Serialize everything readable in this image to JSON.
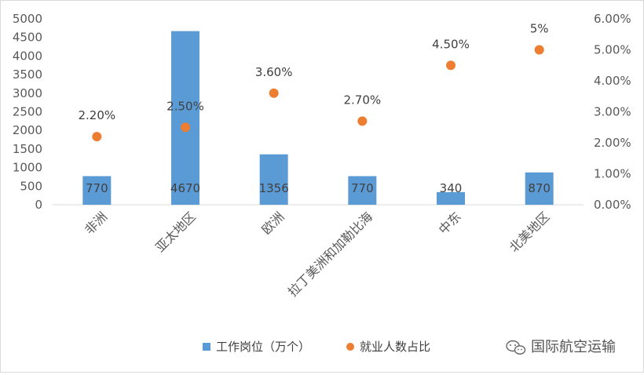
{
  "chart_data": {
    "type": "bar",
    "categories": [
      "非洲",
      "亚太地区",
      "欧洲",
      "拉丁美洲和加勒比海",
      "中东",
      "北美地区"
    ],
    "series": [
      {
        "name": "工作岗位（万个）",
        "kind": "bar",
        "axis": "left",
        "color": "#5B9BD5",
        "values": [
          770,
          4670,
          1356,
          770,
          340,
          870
        ],
        "labels": [
          "770",
          "4670",
          "1356",
          "770",
          "340",
          "870"
        ]
      },
      {
        "name": "就业人数占比",
        "kind": "scatter",
        "axis": "right",
        "color": "#ED7D31",
        "values": [
          2.2,
          2.5,
          3.6,
          2.7,
          4.5,
          5.0
        ],
        "labels": [
          "2.20%",
          "2.50%",
          "3.60%",
          "2.70%",
          "4.50%",
          "5%"
        ]
      }
    ],
    "y_left": {
      "ylim": [
        0,
        5000
      ],
      "ticks": [
        "0",
        "500",
        "1000",
        "1500",
        "2000",
        "2500",
        "3000",
        "3500",
        "4000",
        "4500",
        "5000"
      ]
    },
    "y_right": {
      "ylim": [
        0,
        6
      ],
      "ticks": [
        "0.00%",
        "1.00%",
        "2.00%",
        "3.00%",
        "4.00%",
        "5.00%",
        "6.00%"
      ]
    },
    "grid": false,
    "legend_position": "bottom"
  },
  "watermark": {
    "text": "国际航空运输",
    "icon": "wechat-icon"
  }
}
